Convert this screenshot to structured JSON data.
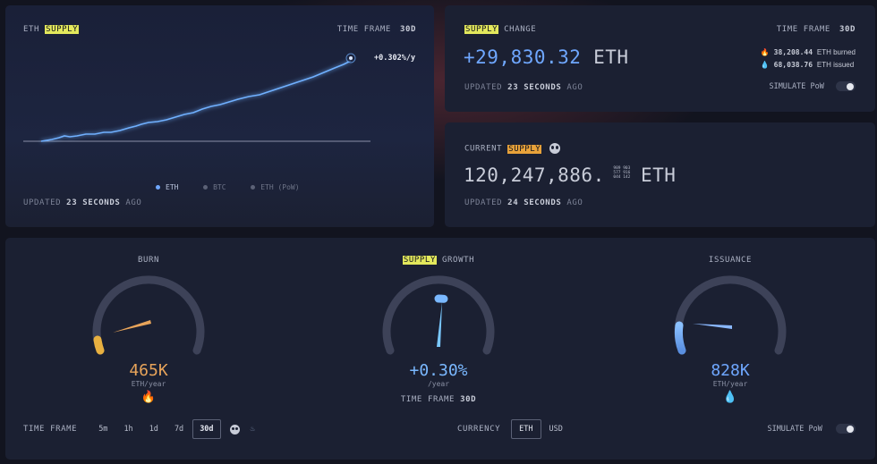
{
  "supply_chart": {
    "title_prefix": "ETH",
    "title_highlight": "SUPPLY",
    "timeframe_label": "TIME FRAME",
    "timeframe_value": "30d",
    "rate_label": "+0.302%/y",
    "legend": [
      {
        "label": "ETH",
        "color": "#6fa7ff",
        "active": true
      },
      {
        "label": "BTC",
        "color": "#5b6176",
        "active": false
      },
      {
        "label": "ETH (PoW)",
        "color": "#5b6176",
        "active": false
      }
    ],
    "updated_prefix": "UPDATED",
    "updated_value": "23 SECONDS",
    "updated_suffix": "AGO",
    "line_color": "#6fb0ff"
  },
  "supply_change": {
    "title_highlight": "SUPPLY",
    "title_suffix": "CHANGE",
    "timeframe_label": "TIME FRAME",
    "timeframe_value": "30d",
    "value": "+29,830.32",
    "unit": "ETH",
    "burned_value": "38,208.44",
    "burned_label": "ETH burned",
    "issued_value": "68,038.76",
    "issued_label": "ETH issued",
    "updated_prefix": "UPDATED",
    "updated_value": "23 SECONDS",
    "updated_suffix": "AGO",
    "simulate_label": "SIMULATE PoW"
  },
  "current_supply": {
    "title_prefix": "CURRENT",
    "title_highlight": "SUPPLY",
    "value": "120,247,886.",
    "fraction_lines": [
      "989 903",
      "577 916",
      "044 142"
    ],
    "unit": "ETH",
    "updated_prefix": "UPDATED",
    "updated_value": "24 SECONDS",
    "updated_suffix": "AGO"
  },
  "gauges": {
    "burn": {
      "title": "BURN",
      "value": "465K",
      "unit": "ETH/year",
      "color": "#e8a45a"
    },
    "growth": {
      "title_highlight": "SUPPLY",
      "title_suffix": "GROWTH",
      "value": "+0.30%",
      "unit": "/year",
      "timeframe_label": "TIME FRAME",
      "timeframe_value": "30d",
      "color": "#7ab8ff"
    },
    "issuance": {
      "title": "ISSUANCE",
      "value": "828K",
      "unit": "ETH/year",
      "color": "#6fa7ff"
    }
  },
  "controls": {
    "timeframe_label": "TIME FRAME",
    "timeframes": [
      "5m",
      "1h",
      "1d",
      "7d",
      "30d"
    ],
    "active_timeframe": "30d",
    "currency_label": "CURRENCY",
    "currencies": [
      "ETH",
      "USD"
    ],
    "active_currency": "ETH",
    "simulate_label": "SIMULATE PoW"
  },
  "icons": {
    "fire": "fire-icon",
    "drop": "drop-icon",
    "panda": "panda-icon",
    "flame_small": "flame-icon"
  }
}
